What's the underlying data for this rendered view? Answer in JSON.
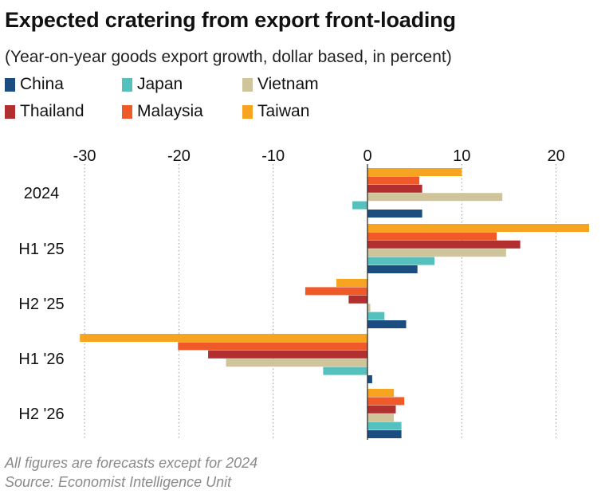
{
  "chart_data": {
    "type": "bar",
    "orientation": "horizontal",
    "title": "Expected cratering from export front-loading",
    "subtitle": "(Year-on-year goods export growth, dollar based, in percent)",
    "categories": [
      "2024",
      "H1 '25",
      "H2 '25",
      "H1 '26",
      "H2 '26"
    ],
    "xlim": [
      -32,
      25
    ],
    "xticks": [
      -30,
      -20,
      -10,
      0,
      10,
      20
    ],
    "xtick_labels": [
      "-30",
      "-20",
      "-10",
      "0",
      "10",
      "20"
    ],
    "grid": true,
    "legend_position": "top-left",
    "series": [
      {
        "name": "Taiwan",
        "color": "#f7a520",
        "values": [
          10.0,
          23.5,
          -3.3,
          -30.5,
          2.8
        ]
      },
      {
        "name": "Malaysia",
        "color": "#ef5a28",
        "values": [
          5.5,
          13.7,
          -6.6,
          -20.1,
          3.9
        ]
      },
      {
        "name": "Thailand",
        "color": "#b22f2f",
        "values": [
          5.8,
          16.2,
          -2.0,
          -16.9,
          3.0
        ]
      },
      {
        "name": "Vietnam",
        "color": "#cfc49a",
        "values": [
          14.3,
          14.7,
          0.3,
          -15.0,
          2.8
        ]
      },
      {
        "name": "Japan",
        "color": "#54c1bf",
        "values": [
          -1.6,
          7.1,
          1.8,
          -4.7,
          3.6
        ]
      },
      {
        "name": "China",
        "color": "#1c4d80",
        "values": [
          5.8,
          5.3,
          4.1,
          0.5,
          3.6
        ]
      }
    ],
    "legend_order": [
      "China",
      "Japan",
      "Vietnam",
      "Thailand",
      "Malaysia",
      "Taiwan"
    ],
    "notes": "All figures are forecasts except for 2024",
    "source": "Source: Economist Intelligence Unit"
  }
}
